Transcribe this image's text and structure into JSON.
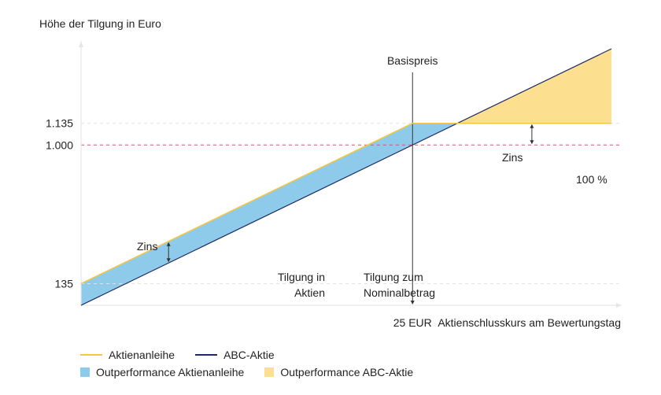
{
  "chart_data": {
    "type": "area",
    "ylabel": "Höhe der Tilgung in Euro",
    "xlabel": "Aktienschlusskurs am Bewertungstag",
    "x_tick": "25 EUR",
    "y_ticks": [
      {
        "label": "1.135",
        "value": 1135
      },
      {
        "label": "1.000",
        "value": 1000
      },
      {
        "label": "135",
        "value": 135
      }
    ],
    "ylim": [
      -200,
      1600
    ],
    "grid": "dashed at y ticks",
    "series": [
      {
        "name": "Aktienanleihe",
        "color": "#f2c744",
        "points": [
          [
            0,
            135
          ],
          [
            25,
            1135
          ],
          [
            40,
            1135
          ]
        ]
      },
      {
        "name": "ABC-Aktie",
        "color": "#1b2a66",
        "points": [
          [
            0,
            0
          ],
          [
            40,
            1600
          ]
        ]
      }
    ],
    "areas": [
      {
        "name": "Outperformance Aktienanleihe",
        "color": "#8ecbea"
      },
      {
        "name": "Outperformance ABC-Aktie",
        "color": "#fde08f"
      }
    ],
    "reference_line": {
      "label": "100 %",
      "value": 1000,
      "color": "#d9506e"
    },
    "strike": {
      "label": "Basispreis",
      "x": 25
    },
    "annotations": {
      "zins_left": "Zins",
      "zins_right": "Zins",
      "tilgung_aktien": [
        "Tilgung in",
        "Aktien"
      ],
      "tilgung_nominal": [
        "Tilgung zum",
        "Nominalbetrag"
      ]
    }
  }
}
